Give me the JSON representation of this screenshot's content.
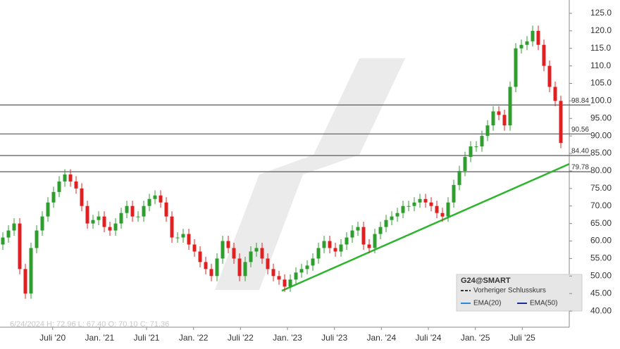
{
  "chart_data": {
    "type": "candlestick",
    "info": "6/24/2024  H: 72.96  L: 67.40  O: 70.10  C: 71.36",
    "xlim": [
      2019.94,
      2026.0
    ],
    "ylim": [
      35.4,
      128.4
    ],
    "xticks": [
      {
        "value": 2020.5,
        "label": "Juli '20"
      },
      {
        "value": 2021.0,
        "label": "Jan. '21"
      },
      {
        "value": 2021.5,
        "label": "Juli '21"
      },
      {
        "value": 2022.0,
        "label": "Jan. '22"
      },
      {
        "value": 2022.5,
        "label": "Juli '22"
      },
      {
        "value": 2023.0,
        "label": "Jan. '23"
      },
      {
        "value": 2023.5,
        "label": "Juli '23"
      },
      {
        "value": 2024.0,
        "label": "Jan. '24"
      },
      {
        "value": 2024.5,
        "label": "Juli '24"
      },
      {
        "value": 2025.0,
        "label": "Jan. '25"
      },
      {
        "value": 2025.5,
        "label": "Juli '25"
      }
    ],
    "yticks": [
      {
        "value": 125,
        "label": "125.0"
      },
      {
        "value": 120,
        "label": "120.0"
      },
      {
        "value": 115,
        "label": "115.0"
      },
      {
        "value": 110,
        "label": "110.0"
      },
      {
        "value": 105,
        "label": "105.0"
      },
      {
        "value": 100,
        "label": "100.0"
      },
      {
        "value": 95,
        "label": "95.00"
      },
      {
        "value": 90,
        "label": "90.00"
      },
      {
        "value": 85,
        "label": "85.00"
      },
      {
        "value": 80,
        "label": "80.00"
      },
      {
        "value": 75,
        "label": "75.00"
      },
      {
        "value": 70,
        "label": "70.00"
      },
      {
        "value": 65,
        "label": "65.00"
      },
      {
        "value": 60,
        "label": "60.00"
      },
      {
        "value": 55,
        "label": "55.00"
      },
      {
        "value": 50,
        "label": "50.00"
      },
      {
        "value": 45,
        "label": "45.00"
      },
      {
        "value": 40,
        "label": "40.00"
      }
    ],
    "levels": [
      98.84,
      {
        "value": 90.56,
        "label": "90.56"
      },
      {
        "value": 84.4,
        "label": "84.40"
      },
      79.78
    ],
    "level_color": "#666666",
    "trendline": {
      "color": "#2db52d",
      "x": [
        2022.94,
        2026.0
      ],
      "y": [
        45.8,
        82
      ]
    },
    "series": [
      {
        "name": "G24@SMART",
        "up_color": "#2e9e2e",
        "down_color": "#e02020",
        "x": [
          2019.97,
          2020.03,
          2020.09,
          2020.15,
          2020.21,
          2020.27,
          2020.33,
          2020.39,
          2020.45,
          2020.51,
          2020.57,
          2020.63,
          2020.69,
          2020.75,
          2020.81,
          2020.87,
          2020.93,
          2020.99,
          2021.05,
          2021.11,
          2021.17,
          2021.23,
          2021.29,
          2021.35,
          2021.41,
          2021.47,
          2021.53,
          2021.59,
          2021.65,
          2021.71,
          2021.77,
          2021.83,
          2021.89,
          2021.95,
          2022.01,
          2022.07,
          2022.13,
          2022.19,
          2022.25,
          2022.31,
          2022.37,
          2022.43,
          2022.49,
          2022.55,
          2022.61,
          2022.67,
          2022.73,
          2022.79,
          2022.85,
          2022.91,
          2022.97,
          2023.03,
          2023.09,
          2023.15,
          2023.21,
          2023.27,
          2023.33,
          2023.39,
          2023.45,
          2023.51,
          2023.57,
          2023.63,
          2023.69,
          2023.75,
          2023.81,
          2023.87,
          2023.93,
          2023.99,
          2024.05,
          2024.11,
          2024.17,
          2024.23,
          2024.29,
          2024.35,
          2024.41,
          2024.47,
          2024.53,
          2024.59,
          2024.65,
          2024.71,
          2024.77,
          2024.83,
          2024.89,
          2024.95,
          2025.01,
          2025.07,
          2025.13,
          2025.19,
          2025.25,
          2025.31,
          2025.37,
          2025.43,
          2025.49,
          2025.55,
          2025.61,
          2025.67,
          2025.73,
          2025.79,
          2025.85,
          2025.91
        ],
        "open": [
          59,
          61,
          63,
          65,
          52,
          45,
          58,
          63,
          67,
          71,
          74,
          77,
          79,
          77,
          75,
          70,
          65,
          66,
          67,
          64,
          63,
          65,
          68,
          70,
          67,
          67,
          70,
          72,
          73,
          71,
          67,
          61,
          61,
          62,
          59,
          57,
          54,
          52,
          50,
          55,
          60,
          58,
          55,
          50,
          54,
          57,
          58,
          55,
          52,
          50,
          49,
          47,
          49,
          51,
          52,
          53,
          55,
          58,
          60,
          58,
          57,
          59,
          61,
          63,
          64,
          59,
          58,
          62,
          64,
          66,
          67,
          68,
          70,
          70,
          71,
          72,
          71,
          70,
          68,
          67,
          71,
          76,
          80,
          84,
          87,
          87,
          90,
          93,
          97,
          96,
          93,
          104,
          115,
          116,
          117,
          120,
          116,
          110,
          104,
          100
        ],
        "high": [
          62.5,
          64.5,
          66.5,
          66.5,
          53.5,
          59.5,
          64.5,
          68.5,
          72.5,
          75.5,
          78.5,
          80.5,
          80.5,
          78.5,
          76.5,
          71.5,
          67.5,
          68.5,
          68.5,
          65.5,
          66.5,
          69.5,
          71.5,
          71.5,
          68.5,
          71.5,
          73.5,
          74.5,
          74.5,
          72.5,
          68.5,
          62.5,
          63.5,
          63.5,
          60.5,
          58.5,
          55.5,
          53.5,
          56.5,
          61.5,
          61.5,
          59.5,
          56.5,
          55.5,
          58.5,
          59.5,
          59.5,
          56.5,
          53.5,
          51.5,
          50.5,
          50.5,
          52.5,
          53.5,
          54.5,
          56.5,
          59.5,
          61.5,
          61.5,
          59.5,
          60.5,
          62.5,
          64.5,
          65.5,
          65.5,
          60.5,
          63.5,
          65.5,
          67.5,
          68.5,
          69.5,
          71.5,
          71.5,
          72.5,
          73.5,
          73.5,
          72.5,
          71.5,
          69.5,
          72.5,
          77.5,
          81.5,
          85.5,
          88.5,
          88.5,
          91.5,
          94.5,
          98.5,
          98.5,
          97.5,
          105.5,
          116.5,
          117.5,
          118.5,
          121.5,
          121.5,
          117.5,
          111.5,
          105.5,
          101.5
        ],
        "low": [
          57.5,
          59.5,
          61.5,
          50.5,
          43.5,
          43.5,
          56.5,
          61.5,
          65.5,
          69.5,
          72.5,
          75.5,
          75.5,
          73.5,
          68.5,
          63.5,
          63.5,
          64.5,
          62.5,
          61.5,
          61.5,
          63.5,
          66.5,
          65.5,
          65.5,
          65.5,
          68.5,
          70.5,
          69.5,
          65.5,
          59.5,
          59.5,
          59.5,
          57.5,
          55.5,
          52.5,
          50.5,
          48.5,
          48.5,
          53.5,
          56.5,
          53.5,
          48.5,
          48.5,
          52.5,
          55.5,
          53.5,
          50.5,
          48.5,
          47.5,
          45.5,
          45.5,
          47.5,
          49.5,
          50.5,
          51.5,
          53.5,
          56.5,
          56.5,
          55.5,
          55.5,
          57.5,
          59.5,
          61.5,
          57.5,
          56.5,
          56.5,
          60.5,
          62.5,
          64.5,
          65.5,
          66.5,
          68.5,
          68.5,
          69.5,
          69.5,
          68.5,
          66.5,
          65.5,
          65.5,
          69.5,
          74.5,
          78.5,
          82.5,
          85.5,
          85.5,
          88.5,
          91.5,
          94.5,
          91.5,
          91.5,
          102.5,
          113.5,
          114.5,
          115.5,
          114.5,
          108.5,
          102.5,
          98.5,
          86.5
        ],
        "close": [
          61,
          63,
          65,
          52,
          45,
          58,
          63,
          67,
          71,
          74,
          77,
          79,
          77,
          75,
          70,
          65,
          66,
          67,
          64,
          63,
          65,
          68,
          70,
          67,
          67,
          70,
          72,
          73,
          71,
          67,
          61,
          61,
          62,
          59,
          57,
          54,
          52,
          50,
          55,
          60,
          58,
          55,
          50,
          54,
          57,
          58,
          55,
          52,
          50,
          49,
          47,
          49,
          51,
          52,
          53,
          55,
          58,
          60,
          58,
          57,
          59,
          61,
          63,
          64,
          59,
          58,
          62,
          64,
          66,
          67,
          68,
          70,
          70,
          71,
          72,
          71,
          70,
          68,
          67,
          71,
          76,
          80,
          84,
          87,
          87,
          90,
          93,
          97,
          96,
          93,
          104,
          115,
          116,
          117,
          120,
          116,
          110,
          104,
          100,
          88
        ]
      }
    ],
    "legend": [
      {
        "name": "Vorheriger Schlusskurs",
        "color": "#333333",
        "dash": true
      },
      {
        "name": "EMA(20)",
        "color": "#2a8ad8"
      },
      {
        "name": "EMA(50)",
        "color": "#1a2a9a"
      }
    ]
  }
}
